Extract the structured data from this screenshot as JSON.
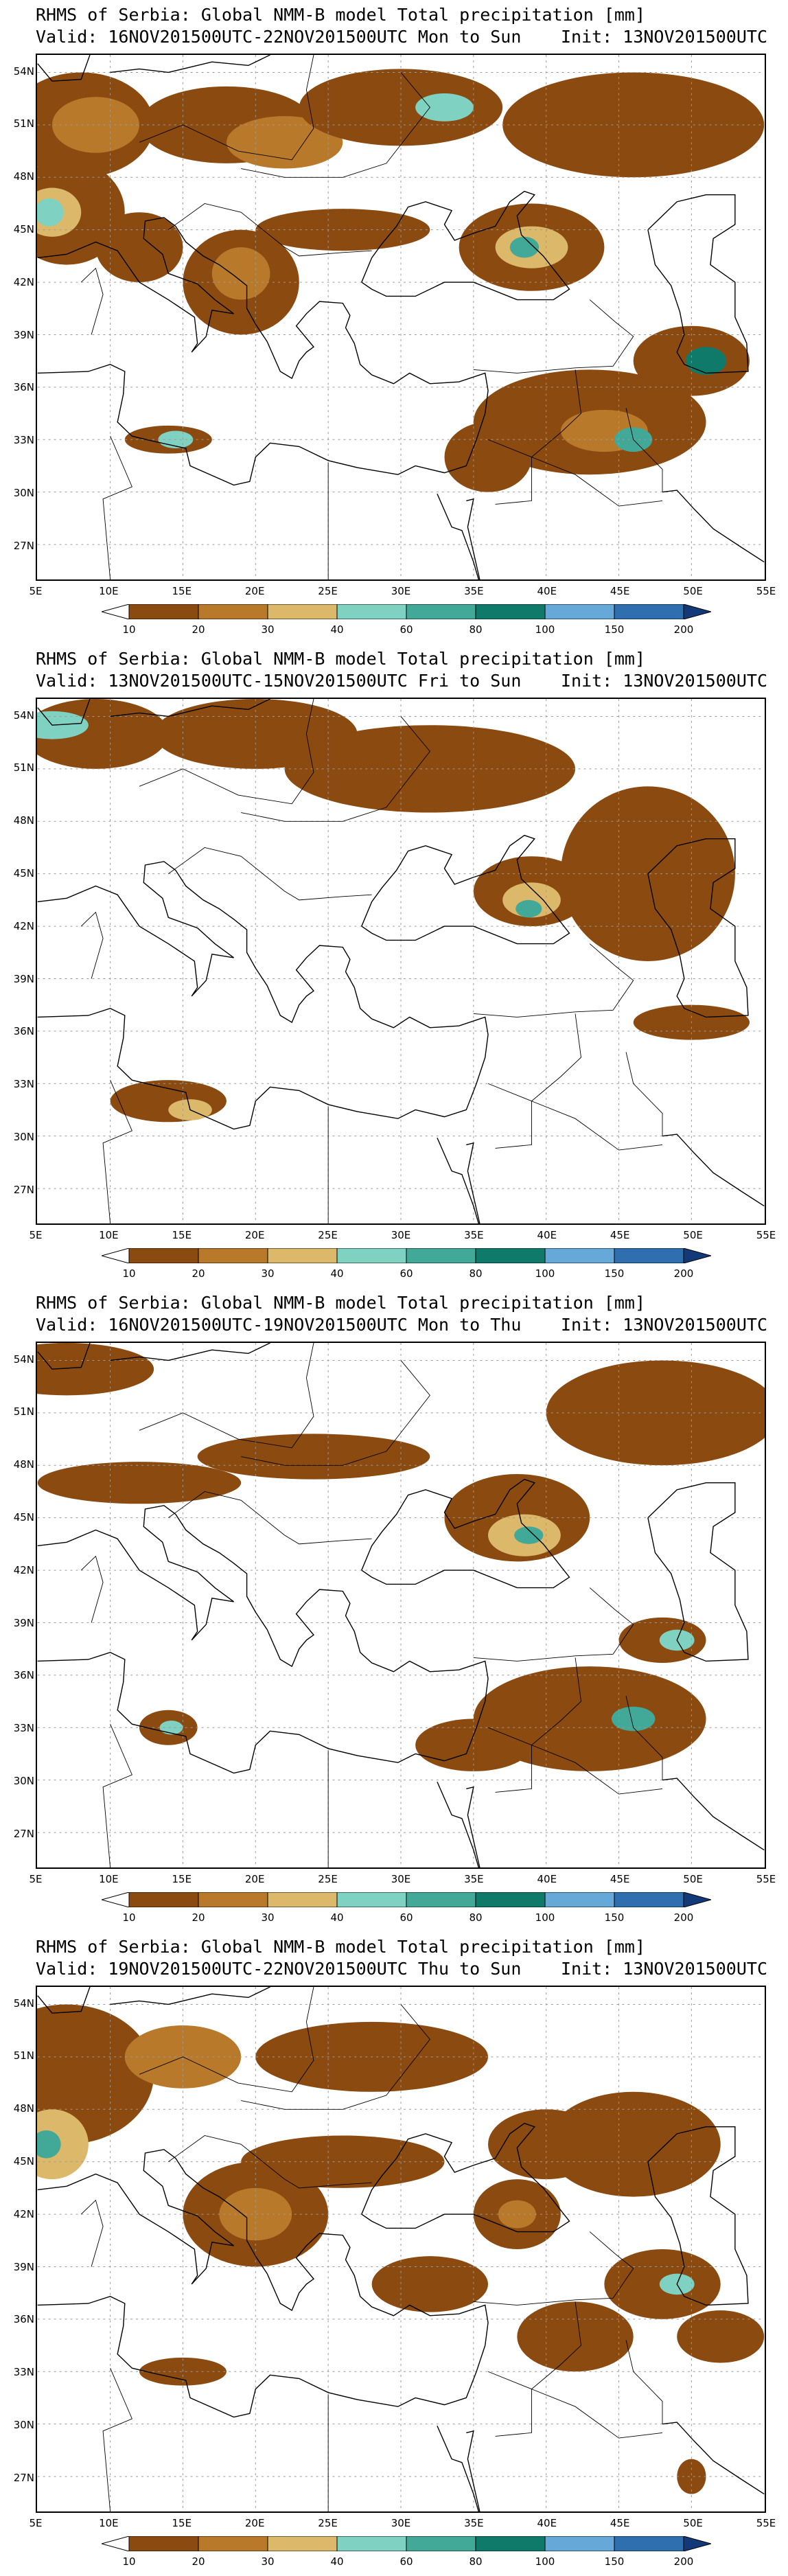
{
  "panels": [
    {
      "title": "RHMS of Serbia: Global NMM-B model Total precipitation [mm]",
      "valid": "Valid: 16NOV201500UTC-22NOV201500UTC Mon to Sun",
      "init": "Init: 13NOV201500UTC"
    },
    {
      "title": "RHMS of Serbia: Global NMM-B model Total precipitation [mm]",
      "valid": "Valid: 13NOV201500UTC-15NOV201500UTC Fri to Sun",
      "init": "Init: 13NOV201500UTC"
    },
    {
      "title": "RHMS of Serbia: Global NMM-B model Total precipitation [mm]",
      "valid": "Valid: 16NOV201500UTC-19NOV201500UTC Mon to Thu",
      "init": "Init: 13NOV201500UTC"
    },
    {
      "title": "RHMS of Serbia: Global NMM-B model Total precipitation [mm]",
      "valid": "Valid: 19NOV201500UTC-22NOV201500UTC Thu to Sun",
      "init": "Init: 13NOV201500UTC"
    }
  ],
  "lat_labels": [
    "54N",
    "51N",
    "48N",
    "45N",
    "42N",
    "39N",
    "36N",
    "33N",
    "30N",
    "27N"
  ],
  "lon_labels": [
    "5E",
    "10E",
    "15E",
    "20E",
    "25E",
    "30E",
    "35E",
    "40E",
    "45E",
    "50E",
    "55E"
  ],
  "colorbar": {
    "levels": [
      "10",
      "20",
      "30",
      "40",
      "60",
      "80",
      "100",
      "150",
      "200"
    ],
    "colors": [
      "#8b4a10",
      "#b87a2a",
      "#dcb86a",
      "#7fd2c2",
      "#42a898",
      "#0f7a6a",
      "#66a8d8",
      "#2f6fb0",
      "#123a78"
    ]
  }
}
